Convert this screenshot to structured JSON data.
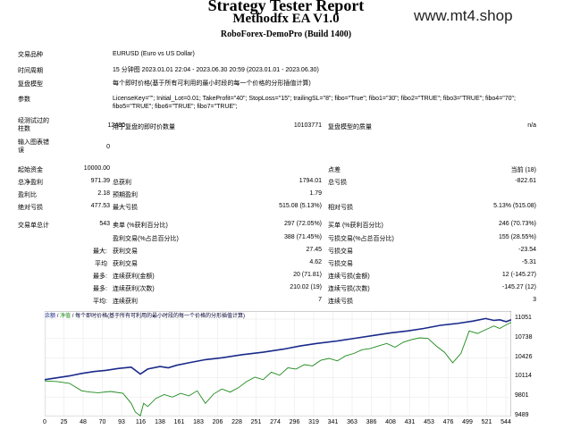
{
  "header": {
    "title": "Strategy Tester Report",
    "ea_name": "Methodfx EA V1.0",
    "server": "RoboForex-DemoPro (Build 1400)",
    "watermark": "www.mt4.shop"
  },
  "info": [
    {
      "label": "交易品种",
      "value": "EURUSD (Euro vs US Dollar)"
    },
    {
      "label": "时间周期",
      "value": "15 分钟图 2023.01.01 22:04 - 2023.06.30 20:59 (2023.01.01 - 2023.06.30)"
    },
    {
      "label": "复盘模型",
      "value": "每个即时价格(基于所有可利用的最小时段的每一个价格的分形插值计算)"
    },
    {
      "label": "参数",
      "value": "LicenseKey=\"\"; Initial_Lot=0.01; TakeProfit=\"40\"; StopLoss=\"15\"; trailingSL=\"8\"; fibo=\"True\"; fibo1=\"30\"; fibo2=\"TRUE\"; fibo3=\"TRUE\"; fibo4=\"70\"; fibo5=\"TRUE\"; fibo6=\"TRUE\"; fibo7=\"TRUE\";"
    }
  ],
  "bars": {
    "label": "经测试过的柱数",
    "value": "12480",
    "ticks_label": "用于复盘的即时价数量",
    "ticks_value": "10103771",
    "quality_label": "复盘模型的质量",
    "quality_value": "n/a"
  },
  "mismatch": {
    "label": "输入图表错误",
    "value": "0"
  },
  "stats": {
    "deposit_label": "起始资金",
    "deposit": "10000.00",
    "spread_label": "点差",
    "spread": "当前 (18)",
    "net_label": "总净盈利",
    "net": "971.39",
    "gross_profit_label": "总获利",
    "gross_profit": "1794.01",
    "gross_loss_label": "总亏损",
    "gross_loss": "-822.61",
    "pf_label": "盈利比",
    "pf": "2.18",
    "ep_label": "预期盈利",
    "ep": "1.79",
    "abs_dd_label": "绝对亏损",
    "abs_dd": "477.53",
    "max_dd_label": "最大亏损",
    "max_dd": "515.08 (5.13%)",
    "rel_dd_label": "相对亏损",
    "rel_dd": "5.13% (515.08)",
    "trades_label": "交易单总计",
    "trades": "543",
    "short_label": "卖单 (%获利百分比)",
    "short": "297 (72.05%)",
    "long_label": "买单 (%获利百分比)",
    "long": "246 (70.73%)",
    "profit_trades_label": "盈利交易(%占总百分比)",
    "profit_trades": "388 (71.45%)",
    "loss_trades_label": "亏损交易(%占总百分比)",
    "loss_trades": "155 (28.55%)",
    "largest_label": "最大:",
    "largest_profit_label": "获利交易",
    "largest_profit": "27.45",
    "largest_loss_label": "亏损交易",
    "largest_loss": "-23.54",
    "average_label": "平均",
    "avg_profit_label": "获利交易",
    "avg_profit": "4.62",
    "avg_loss_label": "亏损交易",
    "avg_loss": "-5.31",
    "max_label": "最多:",
    "max_cons_wins_label": "连续获利(金额)",
    "max_cons_wins": "20 (71.81)",
    "max_cons_losses_label": "连续亏损(金额)",
    "max_cons_losses": "12 (-145.27)",
    "max2_label": "最多:",
    "max_cons_profit_label": "连续获利(次数)",
    "max_cons_profit": "210.02 (19)",
    "max_cons_loss_label": "连续亏损(次数)",
    "max_cons_loss": "-145.27 (12)",
    "avg2_label": "平均:",
    "avg_cons_wins_label": "连续获利",
    "avg_cons_wins": "7",
    "avg_cons_losses_label": "连续亏损",
    "avg_cons_losses": "3"
  },
  "chart_legend": {
    "balance": "余额",
    "equity": "净值",
    "text": "每个即时价格(基于所有可利用的最小时段的每一个价格的分形插值计算)"
  },
  "chart_data": {
    "type": "line",
    "x_ticks": [
      "0",
      "25",
      "48",
      "70",
      "93",
      "116",
      "138",
      "161",
      "183",
      "206",
      "228",
      "251",
      "274",
      "296",
      "319",
      "341",
      "363",
      "386",
      "408",
      "431",
      "453",
      "476",
      "499",
      "521",
      "544"
    ],
    "y_ticks": [
      "11051",
      "10738",
      "10426",
      "10114",
      "9801",
      "9489"
    ],
    "ylim": [
      9489,
      11180
    ],
    "xlim": [
      0,
      566
    ],
    "series": [
      {
        "color": "#1a2a8a",
        "x": [
          0,
          15,
          30,
          45,
          60,
          75,
          90,
          105,
          116,
          125,
          140,
          150,
          160,
          175,
          195,
          215,
          240,
          265,
          290,
          310,
          330,
          355,
          380,
          400,
          420,
          440,
          460,
          480,
          500,
          520,
          535,
          545,
          552,
          560,
          566
        ],
        "y": [
          10080,
          10110,
          10140,
          10180,
          10210,
          10230,
          10260,
          10280,
          10170,
          10250,
          10290,
          10270,
          10310,
          10350,
          10400,
          10430,
          10480,
          10520,
          10570,
          10620,
          10660,
          10700,
          10750,
          10790,
          10830,
          10860,
          10900,
          10950,
          10980,
          11020,
          11060,
          11030,
          11040,
          11010,
          11040
        ]
      },
      {
        "color": "#1b8a1b",
        "x": [
          0,
          15,
          30,
          45,
          55,
          65,
          80,
          95,
          105,
          110,
          116,
          120,
          125,
          135,
          145,
          155,
          165,
          175,
          185,
          195,
          205,
          215,
          225,
          235,
          245,
          255,
          265,
          275,
          285,
          295,
          305,
          315,
          325,
          335,
          345,
          355,
          365,
          375,
          385,
          395,
          405,
          415,
          425,
          435,
          445,
          455,
          465,
          475,
          485,
          495,
          505,
          515,
          525,
          535,
          545,
          552,
          560,
          566
        ],
        "y": [
          10060,
          10050,
          10020,
          9900,
          9880,
          9870,
          9890,
          9860,
          9700,
          9560,
          9500,
          9700,
          9650,
          9780,
          9840,
          9800,
          9860,
          9820,
          9900,
          9700,
          9850,
          9930,
          9880,
          9950,
          10050,
          10120,
          10080,
          10200,
          10150,
          10270,
          10250,
          10320,
          10300,
          10390,
          10420,
          10380,
          10460,
          10500,
          10560,
          10580,
          10620,
          10660,
          10600,
          10680,
          10720,
          10750,
          10740,
          10620,
          10520,
          10350,
          10500,
          10860,
          10820,
          10880,
          10940,
          10900,
          10960,
          11000
        ]
      }
    ]
  }
}
